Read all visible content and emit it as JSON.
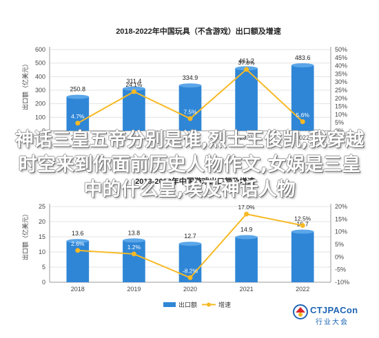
{
  "headline": "神话三皇五帝分别是谁,烈士王俊凯,我穿越时空来到你面前历史人物作文,女娲是三皇中的什么皇,埃及神话人物",
  "watermark": {
    "brand_top": "CTJPACon",
    "brand_bottom": "行业大会",
    "colors": {
      "red": "#d7262c",
      "blue": "#1d64b3",
      "yellow": "#f3b71a"
    },
    "icon": "ctjpa-logo-icon"
  },
  "chart_data": [
    {
      "type": "bar+line",
      "title": "2018-2022年中国玩具（不含游戏）出口额及增速",
      "categories": [
        "2018",
        "2019",
        "2020",
        "2021",
        "2022"
      ],
      "bar_values": [
        250.8,
        311.4,
        334.9,
        461.2,
        483.6
      ],
      "bar_labels": [
        "250.8",
        "311.4",
        "334.9",
        "461.2",
        "483.6"
      ],
      "line_values": [
        4.7,
        24.1,
        7.5,
        37.8,
        5.6
      ],
      "line_labels": [
        "4.7%",
        "24.1%",
        "7.5%",
        "37.8%",
        "5.6%"
      ],
      "ylabel_left": "出口额（亿美元）",
      "yticks_left": [
        0,
        100,
        200,
        300,
        400,
        500,
        600
      ],
      "yticks_left_labels": [
        "0",
        "100",
        "200",
        "300",
        "400",
        "500",
        "600"
      ],
      "ylim_left": [
        0,
        600
      ],
      "yticks_right": [
        0,
        5,
        10,
        15,
        20,
        25,
        30,
        35,
        40,
        45,
        50
      ],
      "yticks_right_labels": [
        "0%",
        "5%",
        "10%",
        "15%",
        "20%",
        "25%",
        "30%",
        "35%",
        "40%",
        "45%",
        "50%"
      ],
      "ylim_right": [
        0,
        50
      ],
      "xlabels_visible": true,
      "colors": {
        "bar": "#2f86d6",
        "line": "#f7b924",
        "marker": "#f7b924"
      }
    },
    {
      "type": "bar+line",
      "title": "2018-2022年中国游戏出口额及增速",
      "categories": [
        "2018",
        "2019",
        "2020",
        "2021",
        "2022"
      ],
      "bar_values": [
        13.6,
        13.8,
        12.7,
        14.9,
        16.7
      ],
      "bar_labels": [
        "13.6",
        "13.8",
        "12.7",
        "14.9",
        "16.7"
      ],
      "line_values": [
        2.6,
        1.2,
        -8.2,
        17.0,
        12.5
      ],
      "line_labels": [
        "2.6%",
        "1.2%",
        "-8.2%",
        "17.0%",
        "12.5%"
      ],
      "ylabel_left": "出口额（亿美元）",
      "yticks_left": [
        0,
        5,
        10,
        15,
        20,
        25
      ],
      "yticks_left_labels": [
        "0",
        "5",
        "10",
        "15",
        "20",
        "25"
      ],
      "ylim_left": [
        0,
        25
      ],
      "yticks_right": [
        -10,
        -5,
        0,
        5,
        10,
        15,
        20
      ],
      "yticks_right_labels": [
        "-10%",
        "-5%",
        "0%",
        "5%",
        "10%",
        "15%",
        "20%"
      ],
      "ylim_right": [
        -10,
        20
      ],
      "legend": [
        "出口额",
        "增速"
      ],
      "legend_position": "bottom-center",
      "colors": {
        "bar": "#2f86d6",
        "line": "#f7b924",
        "marker": "#f7b924"
      }
    }
  ]
}
